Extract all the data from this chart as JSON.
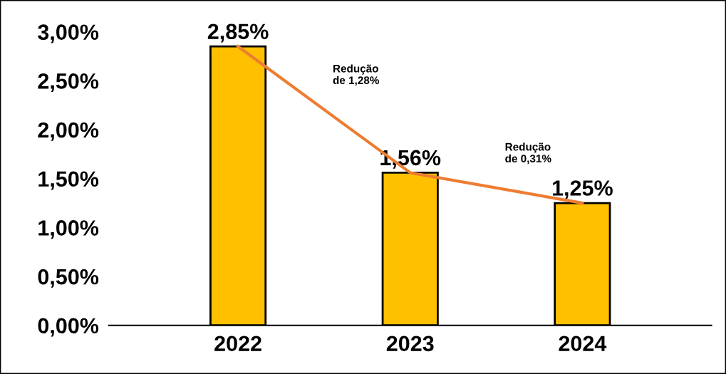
{
  "chart_data": {
    "type": "bar",
    "categories": [
      "2022",
      "2023",
      "2024"
    ],
    "series": [
      {
        "color": "#ffc000",
        "values": [
          2.85,
          1.56,
          1.25
        ],
        "value_labels": [
          "2,85%",
          "1,56%",
          "1,25%"
        ]
      },
      {
        "type": "line",
        "color": "#ed7d31",
        "values": [
          2.85,
          1.56,
          1.25
        ]
      }
    ],
    "ylim": [
      0,
      3
    ],
    "yticks": [
      {
        "value": 0,
        "label": "0,00%"
      },
      {
        "value": 0.5,
        "label": "0,50%"
      },
      {
        "value": 1,
        "label": "1,00%"
      },
      {
        "value": 1.5,
        "label": "1,50%"
      },
      {
        "value": 2,
        "label": "2,00%"
      },
      {
        "value": 2.5,
        "label": "2,50%"
      },
      {
        "value": 3,
        "label": "3,00%"
      }
    ],
    "annotations": [
      "Redução\nde 1,28%",
      "Redução\nde 0,31%"
    ],
    "grid": false,
    "legend": false,
    "marker": "none",
    "line_style": "solid"
  }
}
